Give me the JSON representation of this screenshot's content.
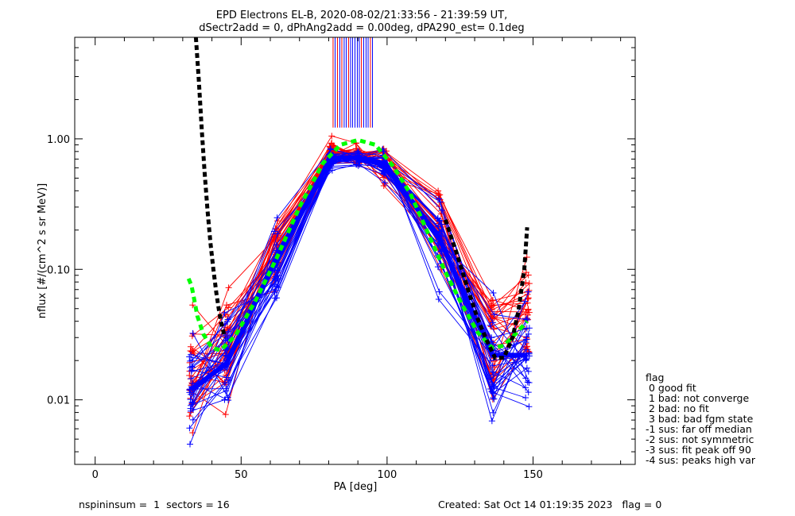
{
  "chart_data": {
    "type": "line",
    "title": "EPD Electrons EL-B, 2020-08-02/21:33:56 - 21:39:59 UT,",
    "subtitle": "dSectr2add = 0, dPhAng2add = 0.00deg, dPA290_est=   0.1deg",
    "xlabel": "PA [deg]",
    "ylabel": "nflux [#/(cm^2 s sr MeV)]",
    "xlim": [
      -7,
      185
    ],
    "ylim": [
      0.0032,
      6.0
    ],
    "y_scale": "log",
    "x_ticks": [
      0,
      50,
      100,
      150
    ],
    "x_tick_labels": [
      "0",
      "50",
      "100",
      "150"
    ],
    "y_ticks": [
      0.01,
      0.1,
      1.0
    ],
    "y_tick_labels": [
      "0.01",
      "0.10",
      "1.00"
    ],
    "grid": false,
    "sector_pa": [
      33,
      45,
      62,
      81,
      90,
      99,
      118,
      136,
      148
    ],
    "series": [
      {
        "color": "#ff0000",
        "count": 30,
        "median": [
          0.013,
          0.024,
          0.15,
          0.78,
          0.75,
          0.68,
          0.2,
          0.03,
          0.045
        ],
        "spread": [
          0.45,
          0.38,
          0.28,
          0.1,
          0.08,
          0.12,
          0.3,
          0.42,
          0.42
        ]
      },
      {
        "color": "#0000ff",
        "count": 30,
        "median": [
          0.011,
          0.018,
          0.11,
          0.7,
          0.7,
          0.62,
          0.16,
          0.02,
          0.02
        ],
        "spread": [
          0.45,
          0.35,
          0.26,
          0.08,
          0.05,
          0.1,
          0.3,
          0.45,
          0.45
        ]
      }
    ],
    "median_thick": {
      "color": "#0000ff",
      "x": [
        33,
        45,
        62,
        81,
        90,
        99,
        118,
        136,
        148
      ],
      "y": [
        0.012,
        0.019,
        0.12,
        0.72,
        0.72,
        0.65,
        0.17,
        0.022,
        0.022
      ]
    },
    "fit_black": {
      "color": "#000000",
      "segments": [
        {
          "x": [
            34.5,
            35.5,
            36.5,
            37.5,
            38.5,
            39.5,
            40.5,
            41.5,
            42.5,
            43.5,
            44.5
          ],
          "y": [
            6.0,
            2.8,
            1.2,
            0.55,
            0.28,
            0.16,
            0.1,
            0.066,
            0.047,
            0.036,
            0.03
          ]
        },
        {
          "x": [
            120,
            124,
            128,
            131,
            134,
            137,
            140,
            143,
            145,
            147,
            148
          ],
          "y": [
            0.24,
            0.13,
            0.067,
            0.042,
            0.029,
            0.021,
            0.021,
            0.03,
            0.048,
            0.1,
            0.21
          ]
        }
      ]
    },
    "fit_green": {
      "color": "#00ff00",
      "x": [
        32,
        33,
        34,
        35,
        37,
        40,
        43,
        48,
        55,
        62,
        70,
        78,
        84,
        90,
        96,
        102,
        108,
        114,
        120,
        126,
        131,
        136,
        140,
        144,
        148
      ],
      "y": [
        0.085,
        0.075,
        0.058,
        0.044,
        0.032,
        0.025,
        0.024,
        0.031,
        0.058,
        0.12,
        0.3,
        0.65,
        0.9,
        0.98,
        0.9,
        0.62,
        0.38,
        0.19,
        0.095,
        0.052,
        0.033,
        0.025,
        0.026,
        0.032,
        0.04
      ]
    },
    "spikes": {
      "x": [
        81.5,
        82.2,
        83,
        83.8,
        84.5,
        85.3,
        86,
        86.8,
        87.5,
        88.2,
        89,
        89.8,
        90.5,
        91.2,
        92,
        92.8,
        93.5,
        94.3,
        95
      ],
      "colors": [
        "#ff0000",
        "#0000ff",
        "#ff0000",
        "#0000ff",
        "#ff0000",
        "#0000ff",
        "#0000ff",
        "#ff0000",
        "#0000ff",
        "#0000ff",
        "#0000ff",
        "#0000ff",
        "#0000ff",
        "#ff0000",
        "#0000ff",
        "#0000ff",
        "#0000ff",
        "#ff0000",
        "#0000ff"
      ],
      "y_bottom": 1.22
    }
  },
  "legend": {
    "items": [
      "flag",
      " 0 good fit",
      " 1 bad: not converge",
      " 2 bad: no fit",
      " 3 bad: bad fgm state",
      "-1 sus: far off median",
      "-2 sus: not symmetric",
      "-3 sus: fit peak off 90",
      "-4 sus: peaks high var"
    ]
  },
  "footer": {
    "left": "nspininsum =  1  sectors = 16",
    "right": "Created: Sat Oct 14 01:19:35 2023   flag = 0"
  }
}
